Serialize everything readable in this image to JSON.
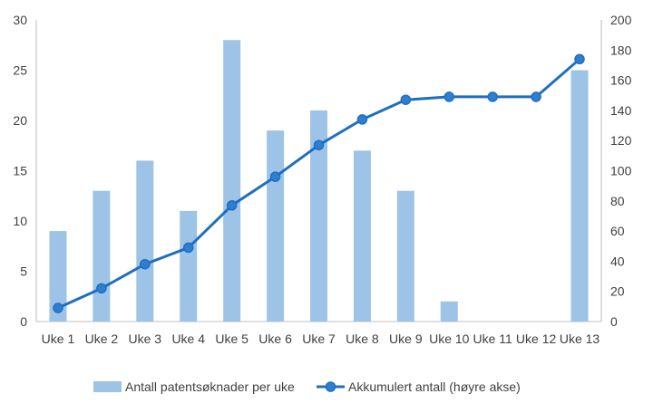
{
  "chart_data": {
    "type": "bar+line",
    "categories": [
      "Uke 1",
      "Uke 2",
      "Uke 3",
      "Uke 4",
      "Uke 5",
      "Uke 6",
      "Uke 7",
      "Uke 8",
      "Uke 9",
      "Uke 10",
      "Uke 11",
      "Uke 12",
      "Uke 13"
    ],
    "series": [
      {
        "name": "Antall patentsøknader per uke",
        "type": "bar",
        "axis": "left",
        "color": "#9dc3e6",
        "values": [
          9,
          13,
          16,
          11,
          28,
          19,
          21,
          17,
          13,
          2,
          0,
          0,
          25
        ]
      },
      {
        "name": "Akkumulert antall (høyre akse)",
        "type": "line",
        "axis": "right",
        "color": "#1f6ebf",
        "values": [
          9,
          22,
          38,
          49,
          77,
          96,
          117,
          134,
          147,
          149,
          149,
          149,
          174
        ]
      }
    ],
    "y_left": {
      "min": 0,
      "max": 30,
      "ticks": [
        0,
        5,
        10,
        15,
        20,
        25,
        30
      ]
    },
    "y_right": {
      "min": 0,
      "max": 200,
      "ticks": [
        0,
        20,
        40,
        60,
        80,
        100,
        120,
        140,
        160,
        180,
        200
      ]
    },
    "grid": false,
    "legend_position": "bottom"
  }
}
